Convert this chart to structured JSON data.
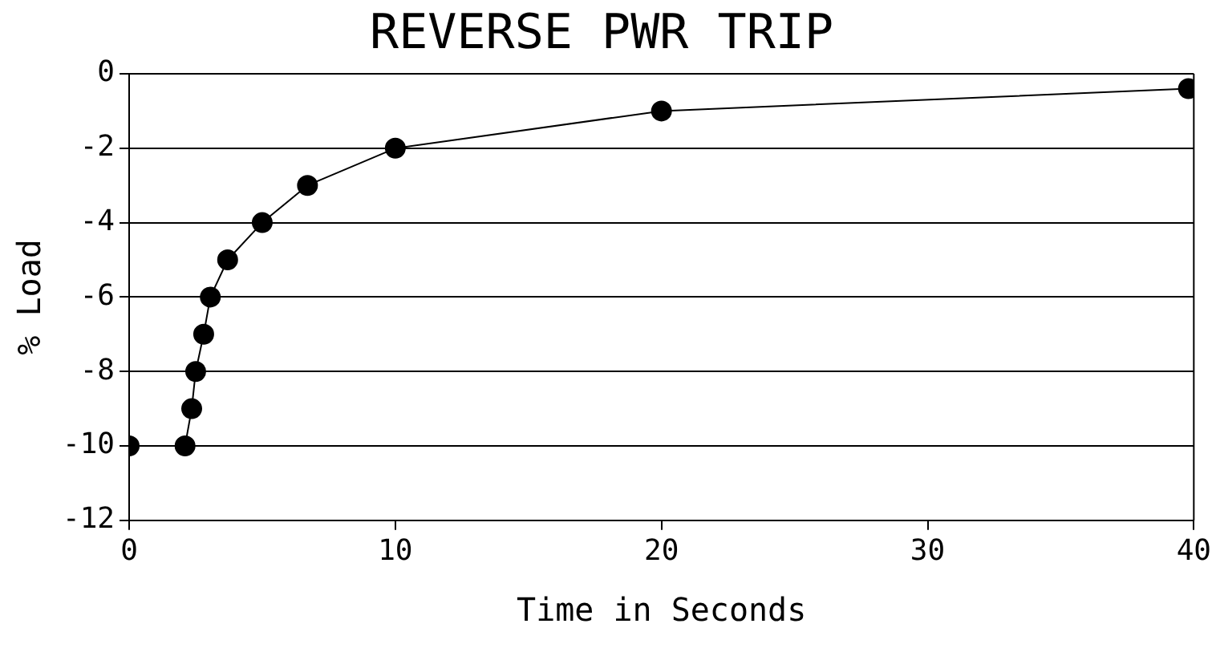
{
  "chart_data": {
    "type": "line",
    "title": "REVERSE PWR TRIP",
    "xlabel": "Time in Seconds",
    "ylabel": "% Load",
    "x": [
      0,
      2.1,
      2.35,
      2.5,
      2.8,
      3.05,
      3.7,
      5.0,
      6.7,
      10,
      20,
      39.8
    ],
    "series": [
      {
        "color": "#000000",
        "values": [
          -10,
          -10,
          -9,
          -8,
          -7,
          -6,
          -5,
          -4,
          -3,
          -2,
          -1,
          -0.4
        ]
      }
    ],
    "xlim": [
      0,
      40
    ],
    "xticks": [
      0,
      10,
      20,
      30,
      40
    ],
    "ylim": [
      -12,
      0
    ],
    "yticks": [
      -12,
      -10,
      -8,
      -6,
      -4,
      -2,
      0
    ],
    "grid": "y",
    "legend": false,
    "marker": "circle",
    "line_style": "solid"
  }
}
